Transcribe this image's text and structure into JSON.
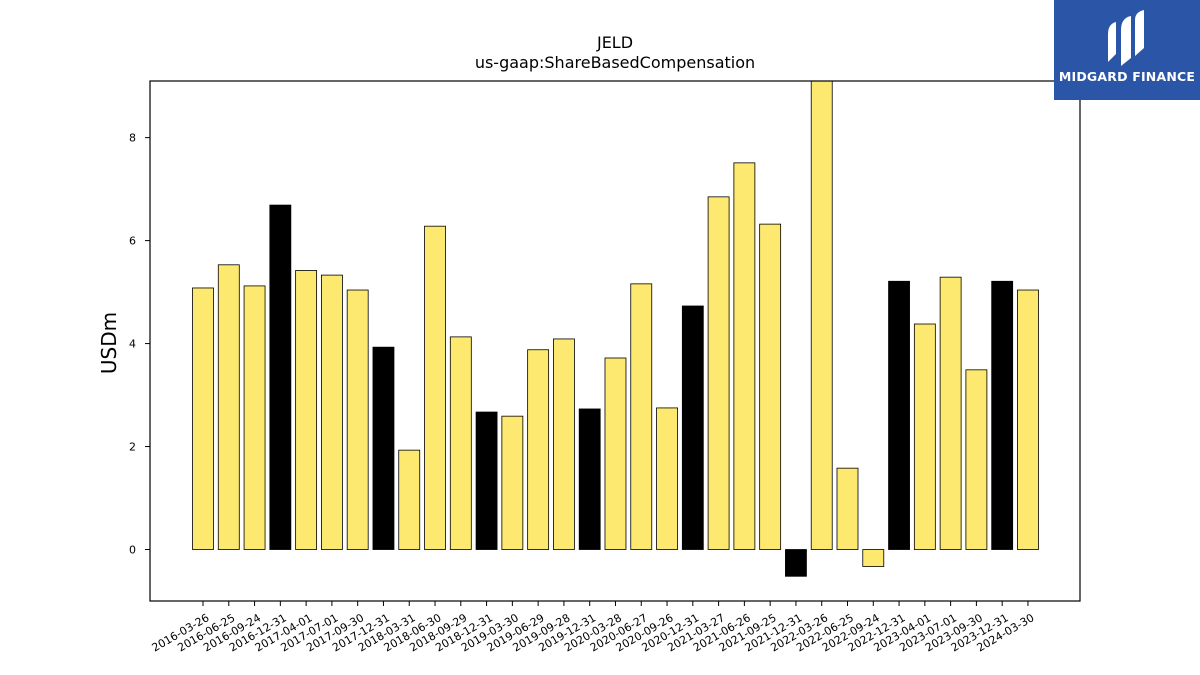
{
  "brand": {
    "name": "MIDGARD FINANCE",
    "color": "#2b56a8"
  },
  "chart_data": {
    "type": "bar",
    "title": "JELD",
    "subtitle": "us-gaap:ShareBasedCompensation",
    "xlabel": "",
    "ylabel": "USDm",
    "ylim": [
      -1.0,
      9.1
    ],
    "yticks": [
      0,
      2,
      4,
      6,
      8
    ],
    "grid": false,
    "colors": {
      "regular": "#fde96f",
      "year_end": "#000000",
      "edge": "#000000"
    },
    "categories": [
      "2016-03-26",
      "2016-06-25",
      "2016-09-24",
      "2016-12-31",
      "2017-04-01",
      "2017-07-01",
      "2017-09-30",
      "2017-12-31",
      "2018-03-31",
      "2018-06-30",
      "2018-09-29",
      "2018-12-31",
      "2019-03-30",
      "2019-06-29",
      "2019-09-28",
      "2019-12-31",
      "2020-03-28",
      "2020-06-27",
      "2020-09-26",
      "2020-12-31",
      "2021-03-27",
      "2021-06-26",
      "2021-09-25",
      "2021-12-31",
      "2022-03-26",
      "2022-06-25",
      "2022-09-24",
      "2022-12-31",
      "2023-04-01",
      "2023-07-01",
      "2023-09-30",
      "2023-12-31",
      "2024-03-30"
    ],
    "values": [
      5.08,
      5.53,
      5.12,
      6.69,
      5.42,
      5.33,
      5.04,
      3.93,
      1.93,
      6.28,
      4.13,
      2.67,
      2.59,
      3.88,
      4.09,
      2.73,
      3.72,
      5.16,
      2.75,
      4.73,
      6.85,
      7.51,
      6.32,
      -0.52,
      9.1,
      1.58,
      -0.33,
      5.21,
      4.38,
      5.29,
      3.49,
      5.21,
      5.04
    ],
    "year_end": [
      false,
      false,
      false,
      true,
      false,
      false,
      false,
      true,
      false,
      false,
      false,
      true,
      false,
      false,
      false,
      true,
      false,
      false,
      false,
      true,
      false,
      false,
      false,
      true,
      false,
      false,
      false,
      true,
      false,
      false,
      false,
      true,
      false
    ]
  }
}
